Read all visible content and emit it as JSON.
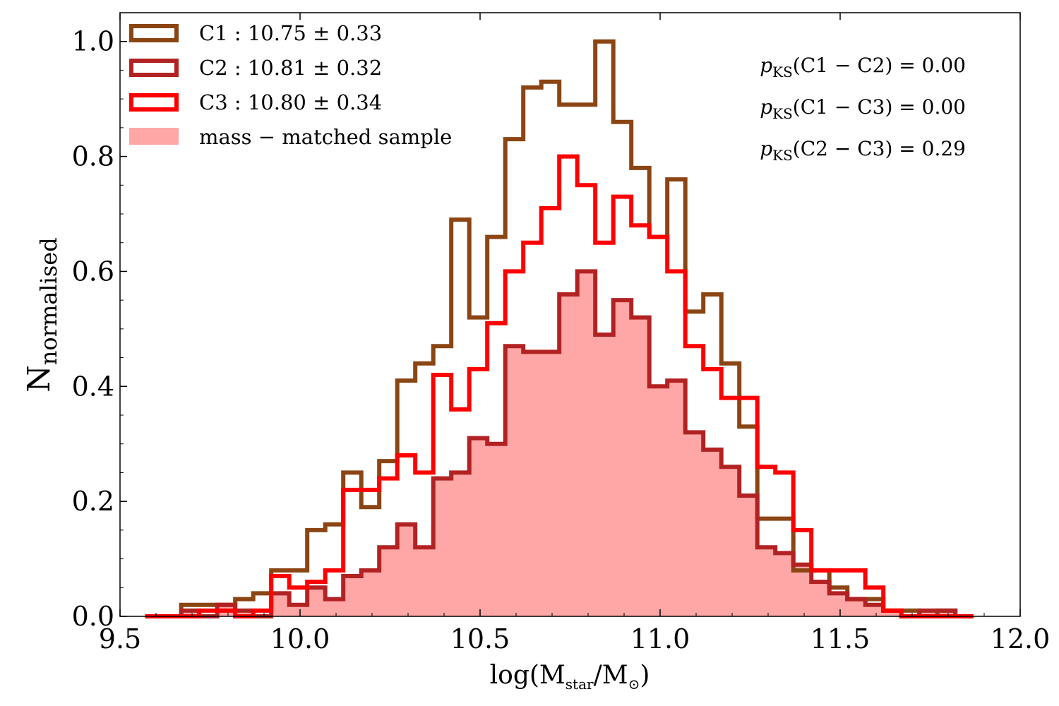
{
  "chart_data": {
    "type": "histogram-step",
    "xlabel": "log(M",
    "xlabel_sub": "star",
    "xlabel_mid": "/M",
    "xlabel_sub2": "⊙",
    "xlabel_end": ")",
    "ylabel": "N",
    "ylabel_sub": "normalised",
    "xlim": [
      9.5,
      12.0
    ],
    "ylim": [
      0.0,
      1.05
    ],
    "xticks": [
      9.5,
      10.0,
      10.5,
      11.0,
      11.5,
      12.0
    ],
    "xtick_labels": [
      "9.5",
      "10.0",
      "10.5",
      "11.0",
      "11.5",
      "12.0"
    ],
    "yticks": [
      0.0,
      0.2,
      0.4,
      0.6,
      0.8,
      1.0
    ],
    "ytick_labels": [
      "0.0",
      "0.2",
      "0.4",
      "0.6",
      "0.8",
      "1.0"
    ],
    "bin_start": 9.57,
    "bin_width": 0.05,
    "series": [
      {
        "name": "C1",
        "legend": "C1 : 10.75 ± 0.33",
        "color": "#8B4513",
        "style": "step",
        "values": [
          0.0,
          0.0,
          0.02,
          0.02,
          0.02,
          0.03,
          0.04,
          0.08,
          0.08,
          0.15,
          0.16,
          0.25,
          0.19,
          0.27,
          0.41,
          0.44,
          0.47,
          0.69,
          0.52,
          0.66,
          0.83,
          0.92,
          0.93,
          0.89,
          0.89,
          1.0,
          0.86,
          0.78,
          0.66,
          0.76,
          0.53,
          0.56,
          0.44,
          0.33,
          0.17,
          0.17,
          0.08,
          0.08,
          0.05,
          0.03,
          0.03,
          0.01,
          0.01,
          0.0,
          0.01,
          0.0
        ]
      },
      {
        "name": "C2",
        "legend": "C2 : 10.81 ± 0.32",
        "color": "#B22222",
        "style": "step",
        "values": [
          0.0,
          0.0,
          0.01,
          0.0,
          0.02,
          0.01,
          0.0,
          0.04,
          0.02,
          0.05,
          0.03,
          0.07,
          0.08,
          0.12,
          0.16,
          0.12,
          0.24,
          0.25,
          0.31,
          0.3,
          0.47,
          0.46,
          0.46,
          0.56,
          0.6,
          0.49,
          0.55,
          0.52,
          0.4,
          0.41,
          0.32,
          0.29,
          0.26,
          0.21,
          0.12,
          0.11,
          0.09,
          0.06,
          0.04,
          0.03,
          0.02,
          0.01,
          0.0,
          0.01,
          0.01,
          0.0
        ]
      },
      {
        "name": "C3",
        "legend": "C3 : 10.80 ± 0.34",
        "color": "#FF0000",
        "style": "step",
        "values": [
          0.0,
          0.0,
          0.0,
          0.01,
          0.01,
          0.0,
          0.01,
          0.07,
          0.05,
          0.06,
          0.08,
          0.22,
          0.22,
          0.24,
          0.28,
          0.25,
          0.42,
          0.36,
          0.43,
          0.51,
          0.6,
          0.65,
          0.71,
          0.8,
          0.75,
          0.65,
          0.73,
          0.68,
          0.66,
          0.6,
          0.47,
          0.43,
          0.38,
          0.38,
          0.26,
          0.25,
          0.15,
          0.08,
          0.08,
          0.08,
          0.05,
          0.01,
          0.0,
          0.0,
          0.0,
          0.0
        ]
      },
      {
        "name": "mass-matched",
        "legend": "mass − matched sample",
        "color": "#FFA6A6",
        "style": "filled",
        "values": [
          0.0,
          0.0,
          0.01,
          0.0,
          0.02,
          0.01,
          0.0,
          0.04,
          0.02,
          0.05,
          0.03,
          0.07,
          0.08,
          0.12,
          0.16,
          0.12,
          0.24,
          0.25,
          0.31,
          0.3,
          0.47,
          0.46,
          0.46,
          0.56,
          0.6,
          0.49,
          0.55,
          0.52,
          0.4,
          0.41,
          0.32,
          0.29,
          0.26,
          0.21,
          0.12,
          0.11,
          0.09,
          0.06,
          0.04,
          0.03,
          0.02,
          0.01,
          0.0,
          0.01,
          0.01,
          0.0
        ]
      }
    ],
    "annotations": [
      {
        "prefix": "p",
        "sub": "KS",
        "text": "(C1 − C2) = 0.00"
      },
      {
        "prefix": "p",
        "sub": "KS",
        "text": "(C1 − C3) = 0.00"
      },
      {
        "prefix": "p",
        "sub": "KS",
        "text": "(C2 − C3) = 0.29"
      }
    ],
    "legend_position": "top-left"
  }
}
